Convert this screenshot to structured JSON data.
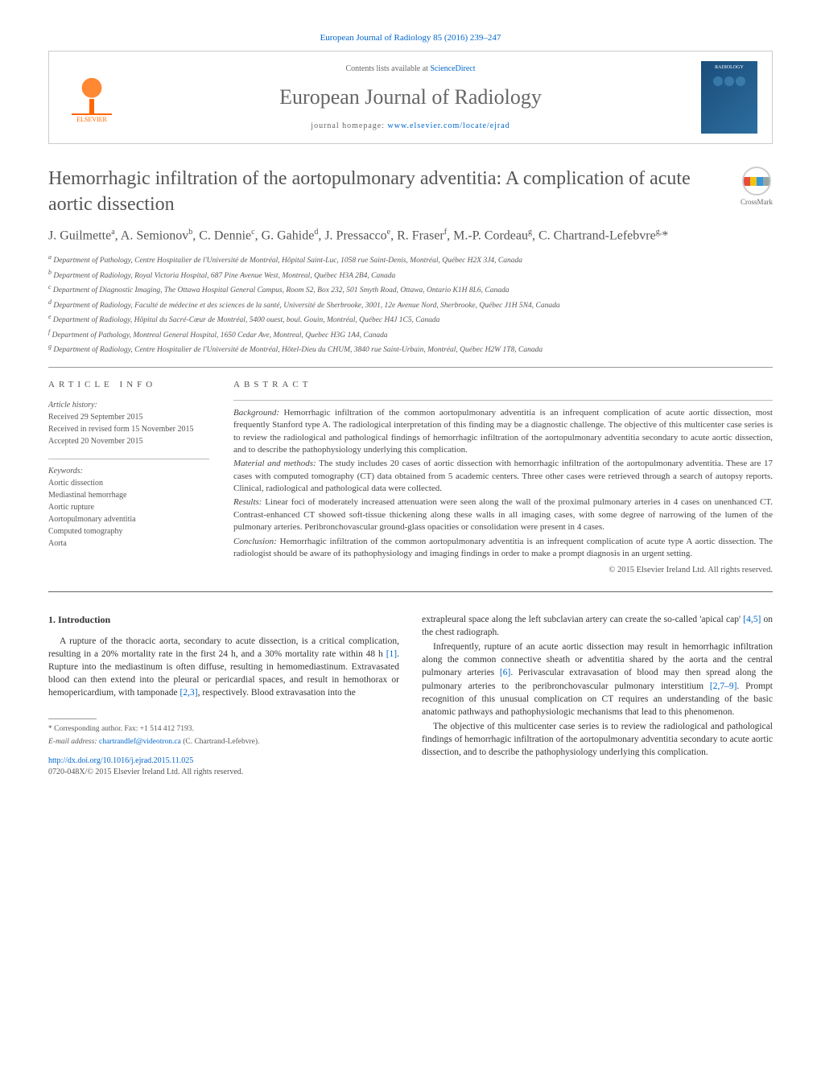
{
  "header": {
    "top_citation": "European Journal of Radiology 85 (2016) 239–247",
    "contents_prefix": "Contents lists available at ",
    "contents_link": "ScienceDirect",
    "journal_name": "European Journal of Radiology",
    "homepage_prefix": "journal homepage: ",
    "homepage_url": "www.elsevier.com/locate/ejrad",
    "elsevier_label": "ELSEVIER",
    "cover_label": "RADIOLOGY",
    "crossmark_label": "CrossMark"
  },
  "article": {
    "title": "Hemorrhagic infiltration of the aortopulmonary adventitia: A complication of acute aortic dissection",
    "authors_html": "J. Guilmette<sup>a</sup>, A. Semionov<sup>b</sup>, C. Dennie<sup>c</sup>, G. Gahide<sup>d</sup>, J. Pressacco<sup>e</sup>, R. Fraser<sup>f</sup>, M.-P. Cordeau<sup>g</sup>, C. Chartrand-Lefebvre<sup>g,</sup>*",
    "affiliations": [
      "a Department of Pathology, Centre Hospitalier de l'Université de Montréal, Hôpital Saint-Luc, 1058 rue Saint-Denis, Montréal, Québec H2X 3J4, Canada",
      "b Department of Radiology, Royal Victoria Hospital, 687 Pine Avenue West, Montreal, Québec H3A 2B4, Canada",
      "c Department of Diagnostic Imaging, The Ottawa Hospital General Campus, Room S2, Box 232, 501 Smyth Road, Ottawa, Ontario K1H 8L6, Canada",
      "d Department of Radiology, Faculté de médecine et des sciences de la santé, Université de Sherbrooke, 3001, 12e Avenue Nord, Sherbrooke, Québec J1H 5N4, Canada",
      "e Department of Radiology, Hôpital du Sacré-Cœur de Montréal, 5400 ouest, boul. Gouin, Montréal, Québec H4J 1C5, Canada",
      "f Department of Pathology, Montreal General Hospital, 1650 Cedar Ave, Montreal, Quebec H3G 1A4, Canada",
      "g Department of Radiology, Centre Hospitalier de l'Université de Montréal, Hôtel-Dieu du CHUM, 3840 rue Saint-Urbain, Montréal, Québec H2W 1T8, Canada"
    ]
  },
  "info": {
    "section_label": "ARTICLE INFO",
    "history_label": "Article history:",
    "received": "Received 29 September 2015",
    "revised": "Received in revised form 15 November 2015",
    "accepted": "Accepted 20 November 2015",
    "keywords_label": "Keywords:",
    "keywords": [
      "Aortic dissection",
      "Mediastinal hemorrhage",
      "Aortic rupture",
      "Aortopulmonary adventitia",
      "Computed tomography",
      "Aorta"
    ]
  },
  "abstract": {
    "section_label": "ABSTRACT",
    "background_label": "Background:",
    "background": " Hemorrhagic infiltration of the common aortopulmonary adventitia is an infrequent complication of acute aortic dissection, most frequently Stanford type A. The radiological interpretation of this finding may be a diagnostic challenge. The objective of this multicenter case series is to review the radiological and pathological findings of hemorrhagic infiltration of the aortopulmonary adventitia secondary to acute aortic dissection, and to describe the pathophysiology underlying this complication.",
    "methods_label": "Material and methods:",
    "methods": " The study includes 20 cases of aortic dissection with hemorrhagic infiltration of the aortopulmonary adventitia. These are 17 cases with computed tomography (CT) data obtained from 5 academic centers. Three other cases were retrieved through a search of autopsy reports. Clinical, radiological and pathological data were collected.",
    "results_label": "Results:",
    "results": " Linear foci of moderately increased attenuation were seen along the wall of the proximal pulmonary arteries in 4 cases on unenhanced CT. Contrast-enhanced CT showed soft-tissue thickening along these walls in all imaging cases, with some degree of narrowing of the lumen of the pulmonary arteries. Peribronchovascular ground-glass opacities or consolidation were present in 4 cases.",
    "conclusion_label": "Conclusion:",
    "conclusion": " Hemorrhagic infiltration of the common aortopulmonary adventitia is an infrequent complication of acute type A aortic dissection. The radiologist should be aware of its pathophysiology and imaging findings in order to make a prompt diagnosis in an urgent setting.",
    "copyright": "© 2015 Elsevier Ireland Ltd. All rights reserved."
  },
  "body": {
    "intro_heading": "1. Introduction",
    "p1a": "A rupture of the thoracic aorta, secondary to acute dissection, is a critical complication, resulting in a 20% mortality rate in the first 24 h, and a 30% mortality rate within 48 h ",
    "p1_ref1": "[1]",
    "p1b": ". Rupture into the mediastinum is often diffuse, resulting in hemomediastinum. Extravasated blood can then extend into the pleural or pericardial spaces, and result in hemothorax or hemopericardium, with tamponade ",
    "p1_ref2": "[2,3]",
    "p1c": ", respectively. Blood extravasation into the",
    "p2a": "extrapleural space along the left subclavian artery can create the so-called 'apical cap' ",
    "p2_ref1": "[4,5]",
    "p2b": " on the chest radiograph.",
    "p3a": "Infrequently, rupture of an acute aortic dissection may result in hemorrhagic infiltration along the common connective sheath or adventitia shared by the aorta and the central pulmonary arteries ",
    "p3_ref1": "[6]",
    "p3b": ". Perivascular extravasation of blood may then spread along the pulmonary arteries to the peribronchovascular pulmonary interstitium ",
    "p3_ref2": "[2,7–9]",
    "p3c": ". Prompt recognition of this unusual complication on CT requires an understanding of the basic anatomic pathways and pathophysiologic mechanisms that lead to this phenomenon.",
    "p4": "The objective of this multicenter case series is to review the radiological and pathological findings of hemorrhagic infiltration of the aortopulmonary adventitia secondary to acute aortic dissection, and to describe the pathophysiology underlying this complication."
  },
  "footnotes": {
    "corresponding": "* Corresponding author. Fax: +1 514 412 7193.",
    "email_label": "E-mail address: ",
    "email": "chartrandlef@videotron.ca",
    "email_suffix": " (C. Chartrand-Lefebvre).",
    "doi_url": "http://dx.doi.org/10.1016/j.ejrad.2015.11.025",
    "issn_line": "0720-048X/© 2015 Elsevier Ireland Ltd. All rights reserved."
  },
  "colors": {
    "link": "#0066cc",
    "heading": "#555555",
    "elsevier": "#ff6600",
    "cover_bg": "#1a4d7a"
  }
}
